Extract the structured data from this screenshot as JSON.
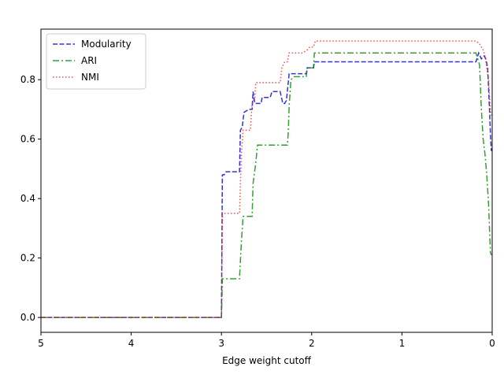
{
  "chart_data": {
    "type": "line",
    "xlabel": "Edge weight cutoff",
    "ylabel": "",
    "xlim": [
      5,
      0
    ],
    "ylim": [
      -0.05,
      0.97
    ],
    "x_ticks": [
      5,
      4,
      3,
      2,
      1,
      0
    ],
    "x_tick_labels": [
      "5",
      "4",
      "3",
      "2",
      "1",
      "0"
    ],
    "y_ticks": [
      0.0,
      0.2,
      0.4,
      0.6,
      0.8
    ],
    "y_tick_labels": [
      "0.0",
      "0.2",
      "0.4",
      "0.6",
      "0.8"
    ],
    "grid": false,
    "legend_position": "top-left",
    "series": [
      {
        "name": "Modularity",
        "color": "#0000cc",
        "dash": "dashed",
        "points": [
          [
            5.0,
            0.0
          ],
          [
            3.0,
            0.0
          ],
          [
            2.99,
            0.48
          ],
          [
            2.97,
            0.48
          ],
          [
            2.95,
            0.49
          ],
          [
            2.8,
            0.49
          ],
          [
            2.79,
            0.63
          ],
          [
            2.77,
            0.64
          ],
          [
            2.75,
            0.69
          ],
          [
            2.7,
            0.7
          ],
          [
            2.66,
            0.7
          ],
          [
            2.65,
            0.76
          ],
          [
            2.63,
            0.72
          ],
          [
            2.56,
            0.72
          ],
          [
            2.55,
            0.74
          ],
          [
            2.46,
            0.74
          ],
          [
            2.44,
            0.76
          ],
          [
            2.35,
            0.76
          ],
          [
            2.32,
            0.72
          ],
          [
            2.3,
            0.72
          ],
          [
            2.28,
            0.73
          ],
          [
            2.25,
            0.82
          ],
          [
            2.06,
            0.82
          ],
          [
            2.05,
            0.84
          ],
          [
            1.98,
            0.84
          ],
          [
            1.97,
            0.86
          ],
          [
            0.18,
            0.86
          ],
          [
            0.15,
            0.89
          ],
          [
            0.12,
            0.87
          ],
          [
            0.09,
            0.88
          ],
          [
            0.07,
            0.87
          ],
          [
            0.05,
            0.84
          ],
          [
            0.04,
            0.77
          ],
          [
            0.03,
            0.7
          ],
          [
            0.02,
            0.62
          ],
          [
            0.01,
            0.56
          ]
        ]
      },
      {
        "name": "ARI",
        "color": "#008800",
        "dash": "dashdot",
        "points": [
          [
            5.0,
            0.0
          ],
          [
            3.0,
            0.0
          ],
          [
            2.99,
            0.13
          ],
          [
            2.8,
            0.13
          ],
          [
            2.78,
            0.25
          ],
          [
            2.76,
            0.34
          ],
          [
            2.66,
            0.34
          ],
          [
            2.65,
            0.45
          ],
          [
            2.62,
            0.52
          ],
          [
            2.6,
            0.58
          ],
          [
            2.27,
            0.58
          ],
          [
            2.26,
            0.62
          ],
          [
            2.25,
            0.71
          ],
          [
            2.23,
            0.8
          ],
          [
            2.2,
            0.81
          ],
          [
            2.06,
            0.81
          ],
          [
            2.05,
            0.84
          ],
          [
            1.98,
            0.84
          ],
          [
            1.97,
            0.89
          ],
          [
            0.18,
            0.89
          ],
          [
            0.14,
            0.85
          ],
          [
            0.12,
            0.7
          ],
          [
            0.1,
            0.6
          ],
          [
            0.08,
            0.55
          ],
          [
            0.06,
            0.48
          ],
          [
            0.04,
            0.38
          ],
          [
            0.03,
            0.3
          ],
          [
            0.02,
            0.22
          ],
          [
            0.01,
            0.21
          ]
        ]
      },
      {
        "name": "NMI",
        "color": "#ee2222",
        "dash": "dotted",
        "points": [
          [
            5.0,
            0.0
          ],
          [
            3.0,
            0.0
          ],
          [
            2.99,
            0.35
          ],
          [
            2.8,
            0.35
          ],
          [
            2.78,
            0.55
          ],
          [
            2.76,
            0.63
          ],
          [
            2.68,
            0.63
          ],
          [
            2.66,
            0.72
          ],
          [
            2.63,
            0.74
          ],
          [
            2.62,
            0.79
          ],
          [
            2.35,
            0.79
          ],
          [
            2.33,
            0.84
          ],
          [
            2.3,
            0.86
          ],
          [
            2.27,
            0.86
          ],
          [
            2.25,
            0.89
          ],
          [
            2.1,
            0.89
          ],
          [
            2.05,
            0.9
          ],
          [
            2.02,
            0.91
          ],
          [
            1.98,
            0.91
          ],
          [
            1.96,
            0.93
          ],
          [
            0.18,
            0.93
          ],
          [
            0.14,
            0.92
          ],
          [
            0.1,
            0.9
          ],
          [
            0.08,
            0.88
          ],
          [
            0.06,
            0.84
          ],
          [
            0.04,
            0.8
          ],
          [
            0.03,
            0.75
          ],
          [
            0.02,
            0.7
          ],
          [
            0.01,
            0.68
          ]
        ]
      }
    ]
  }
}
